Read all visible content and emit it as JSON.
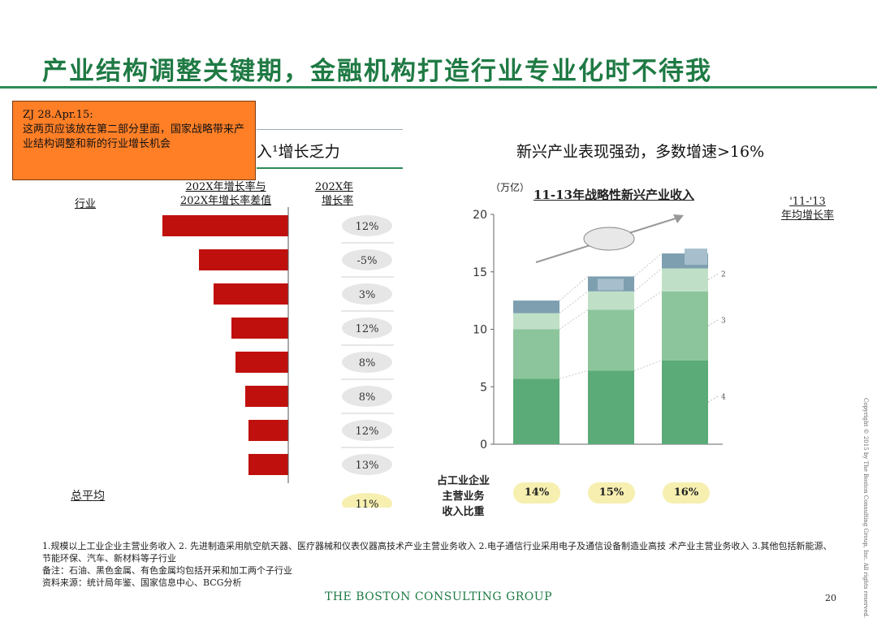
{
  "title": "产业结构调整关键期，金融机构打造行业专业化时不待我",
  "note": {
    "header": "ZJ 28.Apr.15:",
    "text": "这两页应该放在第二部分里面，国家战略带来产业结构调整和新的行业增长机会"
  },
  "left_section_title": "入¹增长乏力",
  "right_section_title": "新兴产业表现强劲，多数增速>16%",
  "left_columns": {
    "industry": "行业",
    "diff_line1": "202X年增长率与",
    "diff_line2": "202X年增长率差值",
    "rate_line1": "202X年",
    "rate_line2": "增长率"
  },
  "avg_label": "总平均",
  "right_chart_unit": "（万亿）",
  "right_chart_title": "11-13年战略性新兴产业收入",
  "cagr_header_line1": "'11-'13",
  "cagr_header_line2": "年均增长率",
  "share_label_lines": [
    "占工业企业",
    "主营业务",
    "收入比重"
  ],
  "share_values": [
    "14%",
    "15%",
    "16%"
  ],
  "footnotes": [
    "1.规模以上工业企业主营业务收入 2. 先进制造采用航空航天器、医疗器械和仪表仪器高技术产业主营业务收入 2.电子通信行业采用电子及通信设备制造业高技 术产业主营业务收入 3.其他包括新能源、节能环保、汽车、新材料等子行业",
    "备注：石油、黑色金属、有色金属均包括开采和加工两个子行业",
    "资料来源：统计局年鉴、国家信息中心、BCG分析"
  ],
  "footer": "THE BOSTON CONSULTING GROUP",
  "page_number": "20",
  "copyright": "Copyright © 2015 by The Boston Consulting Group, Inc. All rights reserved.",
  "colors": {
    "title_green": "#1f7a44",
    "bar_red": "#c0100d",
    "note_orange": "#ff7f27",
    "pill_yellow": "#f6efb0",
    "rate_pill_gray": "#e6e6e6",
    "seg_dark_green": "#5aab78",
    "seg_mid_green": "#8cc59c",
    "seg_light_green": "#bfe0c6",
    "seg_blue": "#7d9fb0"
  },
  "chart_data": [
    {
      "type": "bar",
      "orientation": "horizontal",
      "title": "",
      "note": "Industry names are not shown; bars show the difference between two years' growth rates (negative direction, unlabeled scale).",
      "series": [
        {
          "name": "202X年增长率与202X年增长率差值",
          "values": [
            -15.5,
            -11,
            -9.2,
            -7,
            -6.5,
            -5.3,
            -4.9,
            -4.9
          ]
        }
      ],
      "rate_labels": [
        "12%",
        "-5%",
        "3%",
        "12%",
        "8%",
        "8%",
        "12%",
        "13%"
      ],
      "average_label": "11%"
    },
    {
      "type": "bar",
      "stacked": true,
      "title": "11-13年战略性新兴产业收入",
      "ylabel": "（万亿）",
      "ylim": [
        0,
        20
      ],
      "yticks": [
        "0",
        "5",
        "10",
        "15",
        "20"
      ],
      "categories": [
        "",
        "",
        ""
      ],
      "series": [
        {
          "name": "4",
          "values": [
            5.7,
            6.4,
            7.3
          ]
        },
        {
          "name": "3",
          "values": [
            4.3,
            5.3,
            6.0
          ]
        },
        {
          "name": "2",
          "values": [
            1.4,
            1.6,
            2.0
          ]
        },
        {
          "name": "1",
          "values": [
            1.1,
            1.3,
            1.3
          ]
        }
      ],
      "segment_markers": [
        "2",
        "3",
        "4"
      ]
    }
  ]
}
